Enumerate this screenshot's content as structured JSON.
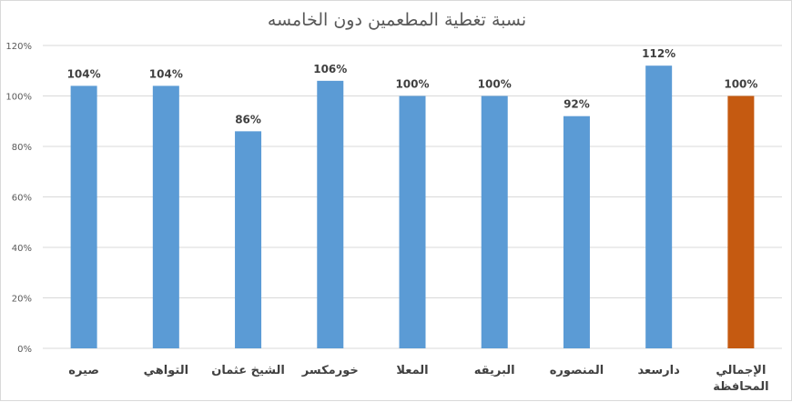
{
  "chart_data": {
    "type": "bar",
    "title": "نسبة تغطية المطعمين دون الخامسه",
    "xlabel": "",
    "ylabel": "",
    "ylim": [
      0,
      120
    ],
    "yticks": [
      "0%",
      "20%",
      "40%",
      "60%",
      "80%",
      "100%",
      "120%"
    ],
    "grid": true,
    "legend": "none",
    "categories": [
      [
        "صيره"
      ],
      [
        "التواهي"
      ],
      [
        "الشيخ عثمان"
      ],
      [
        "خورمكسر"
      ],
      [
        "المعلا"
      ],
      [
        "البريقه"
      ],
      [
        "المنصوره"
      ],
      [
        "دارسعد"
      ],
      [
        "الإجمالي",
        "المحافظة"
      ]
    ],
    "values": [
      104,
      104,
      86,
      106,
      100,
      100,
      92,
      112,
      100
    ],
    "data_labels": [
      "104%",
      "104%",
      "86%",
      "106%",
      "100%",
      "100%",
      "92%",
      "112%",
      "100%"
    ],
    "colors": {
      "bar": "#5b9bd5",
      "highlight": "#c55a11",
      "grid": "#d9d9d9"
    },
    "highlight_index": 8
  }
}
